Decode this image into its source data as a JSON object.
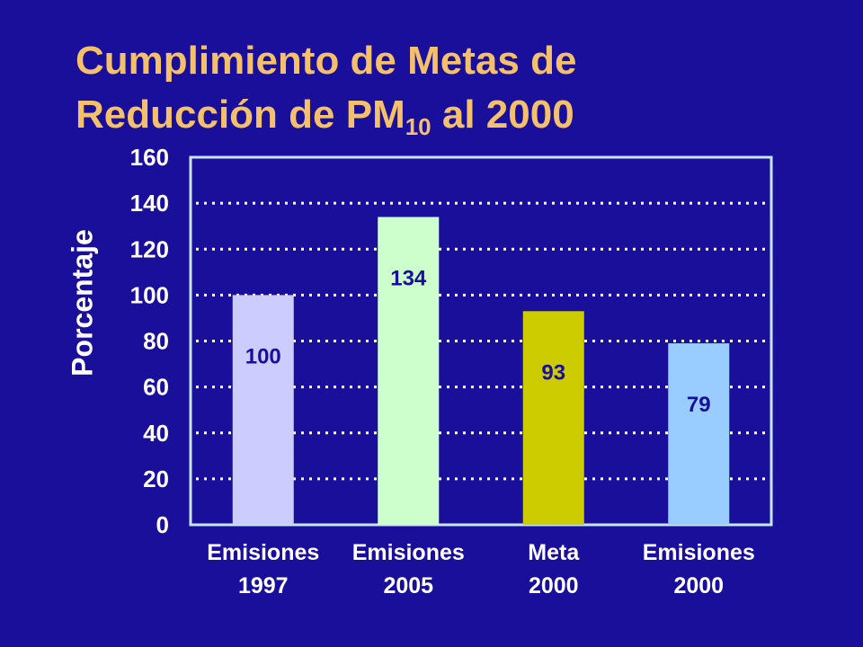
{
  "title": {
    "line1": "Cumplimiento de Metas de",
    "line2_prefix": "Reducción de PM",
    "line2_sub": "10",
    "line2_suffix": " al 2000"
  },
  "chart_data": {
    "type": "bar",
    "title": "Cumplimiento de Metas de Reducción de PM10 al 2000",
    "xlabel": "",
    "ylabel": "Porcentaje",
    "ylim": [
      0,
      160
    ],
    "yticks": [
      0,
      20,
      40,
      60,
      80,
      100,
      120,
      140,
      160
    ],
    "grid": true,
    "legend": "none",
    "categories": [
      [
        "Emisiones",
        "1997"
      ],
      [
        "Emisiones",
        "2005"
      ],
      [
        "Meta",
        "2000"
      ],
      [
        "Emisiones",
        "2000"
      ]
    ],
    "values": [
      100,
      134,
      93,
      79
    ],
    "value_labels": [
      "100",
      "134",
      "93",
      "79"
    ],
    "colors": [
      "#ccccff",
      "#ccffcc",
      "#cccc00",
      "#99ccff"
    ]
  },
  "colors": {
    "background": "#1a0f9a",
    "title": "#f5c06b",
    "axis_text": "#ffffff",
    "plot_border": "#c6e6f2",
    "gridline": "#ffffff",
    "data_label": "#1a0f9a"
  }
}
